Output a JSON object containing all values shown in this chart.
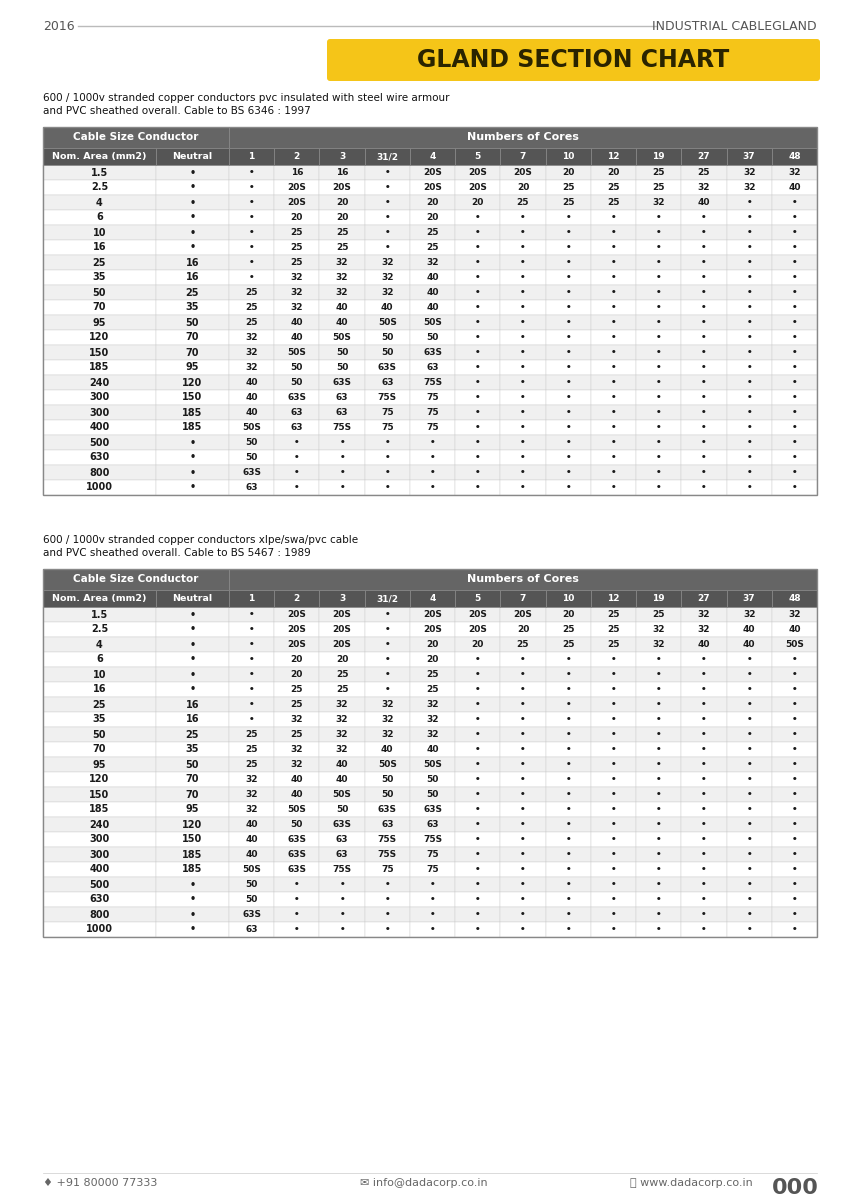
{
  "title": "GLAND SECTION CHART",
  "header_year": "2016",
  "header_right": "INDUSTRIAL CABLEGLAND",
  "table1_subtitle1": "600 / 1000v stranded copper conductors pvc insulated with steel wire armour",
  "table1_subtitle2": "and PVC sheathed overall. Cable to BS 6346 : 1997",
  "table2_subtitle1": "600 / 1000v stranded copper conductors xlpe/swa/pvc cable",
  "table2_subtitle2": "and PVC sheathed overall. Cable to BS 5467 : 1989",
  "table1_data": [
    [
      "1.5",
      "-",
      "-",
      "16",
      "16",
      "-",
      "20S",
      "20S",
      "20S",
      "20",
      "20",
      "25",
      "25",
      "32",
      "32"
    ],
    [
      "2.5",
      "-",
      "-",
      "20S",
      "20S",
      "-",
      "20S",
      "20S",
      "20",
      "25",
      "25",
      "25",
      "32",
      "32",
      "40"
    ],
    [
      "4",
      "-",
      "-",
      "20S",
      "20",
      "-",
      "20",
      "20",
      "25",
      "25",
      "25",
      "32",
      "40",
      "-",
      "-"
    ],
    [
      "6",
      "-",
      "-",
      "20",
      "20",
      "-",
      "20",
      "-",
      "-",
      "-",
      "-",
      "-",
      "-",
      "-",
      "-"
    ],
    [
      "10",
      "-",
      "-",
      "25",
      "25",
      "-",
      "25",
      "-",
      "-",
      "-",
      "-",
      "-",
      "-",
      "-",
      "-"
    ],
    [
      "16",
      "-",
      "-",
      "25",
      "25",
      "-",
      "25",
      "-",
      "-",
      "-",
      "-",
      "-",
      "-",
      "-",
      "-"
    ],
    [
      "25",
      "16",
      "-",
      "25",
      "32",
      "32",
      "32",
      "-",
      "-",
      "-",
      "-",
      "-",
      "-",
      "-",
      "-"
    ],
    [
      "35",
      "16",
      "-",
      "32",
      "32",
      "32",
      "40",
      "-",
      "-",
      "-",
      "-",
      "-",
      "-",
      "-",
      "-"
    ],
    [
      "50",
      "25",
      "25",
      "32",
      "32",
      "32",
      "40",
      "-",
      "-",
      "-",
      "-",
      "-",
      "-",
      "-",
      "-"
    ],
    [
      "70",
      "35",
      "25",
      "32",
      "40",
      "40",
      "40",
      "-",
      "-",
      "-",
      "-",
      "-",
      "-",
      "-",
      "-"
    ],
    [
      "95",
      "50",
      "25",
      "40",
      "40",
      "50S",
      "50S",
      "-",
      "-",
      "-",
      "-",
      "-",
      "-",
      "-",
      "-"
    ],
    [
      "120",
      "70",
      "32",
      "40",
      "50S",
      "50",
      "50",
      "-",
      "-",
      "-",
      "-",
      "-",
      "-",
      "-",
      "-"
    ],
    [
      "150",
      "70",
      "32",
      "50S",
      "50",
      "50",
      "63S",
      "-",
      "-",
      "-",
      "-",
      "-",
      "-",
      "-",
      "-"
    ],
    [
      "185",
      "95",
      "32",
      "50",
      "50",
      "63S",
      "63",
      "-",
      "-",
      "-",
      "-",
      "-",
      "-",
      "-",
      "-"
    ],
    [
      "240",
      "120",
      "40",
      "50",
      "63S",
      "63",
      "75S",
      "-",
      "-",
      "-",
      "-",
      "-",
      "-",
      "-",
      "-"
    ],
    [
      "300",
      "150",
      "40",
      "63S",
      "63",
      "75S",
      "75",
      "-",
      "-",
      "-",
      "-",
      "-",
      "-",
      "-",
      "-"
    ],
    [
      "300",
      "185",
      "40",
      "63",
      "63",
      "75",
      "75",
      "-",
      "-",
      "-",
      "-",
      "-",
      "-",
      "-",
      "-"
    ],
    [
      "400",
      "185",
      "50S",
      "63",
      "75S",
      "75",
      "75",
      "-",
      "-",
      "-",
      "-",
      "-",
      "-",
      "-",
      "-"
    ],
    [
      "500",
      "-",
      "50",
      "-",
      "-",
      "-",
      "-",
      "-",
      "-",
      "-",
      "-",
      "-",
      "-",
      "-",
      "-"
    ],
    [
      "630",
      "-",
      "50",
      "-",
      "-",
      "-",
      "-",
      "-",
      "-",
      "-",
      "-",
      "-",
      "-",
      "-",
      "-"
    ],
    [
      "800",
      "-",
      "63S",
      "-",
      "-",
      "-",
      "-",
      "-",
      "-",
      "-",
      "-",
      "-",
      "-",
      "-",
      "-"
    ],
    [
      "1000",
      "-",
      "63",
      "-",
      "-",
      "-",
      "-",
      "-",
      "-",
      "-",
      "-",
      "-",
      "-",
      "-",
      "-"
    ]
  ],
  "table2_data": [
    [
      "1.5",
      "-",
      "-",
      "20S",
      "20S",
      "-",
      "20S",
      "20S",
      "20S",
      "20",
      "25",
      "25",
      "32",
      "32",
      "32"
    ],
    [
      "2.5",
      "-",
      "-",
      "20S",
      "20S",
      "-",
      "20S",
      "20S",
      "20",
      "25",
      "25",
      "32",
      "32",
      "40",
      "40"
    ],
    [
      "4",
      "-",
      "-",
      "20S",
      "20S",
      "-",
      "20",
      "20",
      "25",
      "25",
      "25",
      "32",
      "40",
      "40",
      "50S"
    ],
    [
      "6",
      "-",
      "-",
      "20",
      "20",
      "-",
      "20",
      "-",
      "-",
      "-",
      "-",
      "-",
      "-",
      "-",
      "-"
    ],
    [
      "10",
      "-",
      "-",
      "20",
      "25",
      "-",
      "25",
      "-",
      "-",
      "-",
      "-",
      "-",
      "-",
      "-",
      "-"
    ],
    [
      "16",
      "-",
      "-",
      "25",
      "25",
      "-",
      "25",
      "-",
      "-",
      "-",
      "-",
      "-",
      "-",
      "-",
      "-"
    ],
    [
      "25",
      "16",
      "-",
      "25",
      "32",
      "32",
      "32",
      "-",
      "-",
      "-",
      "-",
      "-",
      "-",
      "-",
      "-"
    ],
    [
      "35",
      "16",
      "-",
      "32",
      "32",
      "32",
      "32",
      "-",
      "-",
      "-",
      "-",
      "-",
      "-",
      "-",
      "-"
    ],
    [
      "50",
      "25",
      "25",
      "25",
      "32",
      "32",
      "32",
      "-",
      "-",
      "-",
      "-",
      "-",
      "-",
      "-",
      "-"
    ],
    [
      "70",
      "35",
      "25",
      "32",
      "32",
      "40",
      "40",
      "-",
      "-",
      "-",
      "-",
      "-",
      "-",
      "-",
      "-"
    ],
    [
      "95",
      "50",
      "25",
      "32",
      "40",
      "50S",
      "50S",
      "-",
      "-",
      "-",
      "-",
      "-",
      "-",
      "-",
      "-"
    ],
    [
      "120",
      "70",
      "32",
      "40",
      "40",
      "50",
      "50",
      "-",
      "-",
      "-",
      "-",
      "-",
      "-",
      "-",
      "-"
    ],
    [
      "150",
      "70",
      "32",
      "40",
      "50S",
      "50",
      "50",
      "-",
      "-",
      "-",
      "-",
      "-",
      "-",
      "-",
      "-"
    ],
    [
      "185",
      "95",
      "32",
      "50S",
      "50",
      "63S",
      "63S",
      "-",
      "-",
      "-",
      "-",
      "-",
      "-",
      "-",
      "-"
    ],
    [
      "240",
      "120",
      "40",
      "50",
      "63S",
      "63",
      "63",
      "-",
      "-",
      "-",
      "-",
      "-",
      "-",
      "-",
      "-"
    ],
    [
      "300",
      "150",
      "40",
      "63S",
      "63",
      "75S",
      "75S",
      "-",
      "-",
      "-",
      "-",
      "-",
      "-",
      "-",
      "-"
    ],
    [
      "300",
      "185",
      "40",
      "63S",
      "63",
      "75S",
      "75",
      "-",
      "-",
      "-",
      "-",
      "-",
      "-",
      "-",
      "-"
    ],
    [
      "400",
      "185",
      "50S",
      "63S",
      "75S",
      "75",
      "75",
      "-",
      "-",
      "-",
      "-",
      "-",
      "-",
      "-",
      "-"
    ],
    [
      "500",
      "-",
      "50",
      "-",
      "-",
      "-",
      "-",
      "-",
      "-",
      "-",
      "-",
      "-",
      "-",
      "-",
      "-"
    ],
    [
      "630",
      "-",
      "50",
      "-",
      "-",
      "-",
      "-",
      "-",
      "-",
      "-",
      "-",
      "-",
      "-",
      "-",
      "-"
    ],
    [
      "800",
      "-",
      "63S",
      "-",
      "-",
      "-",
      "-",
      "-",
      "-",
      "-",
      "-",
      "-",
      "-",
      "-",
      "-"
    ],
    [
      "1000",
      "-",
      "63",
      "-",
      "-",
      "-",
      "-",
      "-",
      "-",
      "-",
      "-",
      "-",
      "-",
      "-",
      "-"
    ]
  ],
  "footer_phone": "♦ +91 80000 77333",
  "footer_email": "info@dadacorp.co.in",
  "footer_web": "www.dadacorp.co.in",
  "footer_num": "000",
  "title_bg": "#f5c518",
  "title_color": "#2a2400",
  "header_bg": "#656565",
  "subheader_bg": "#555555"
}
